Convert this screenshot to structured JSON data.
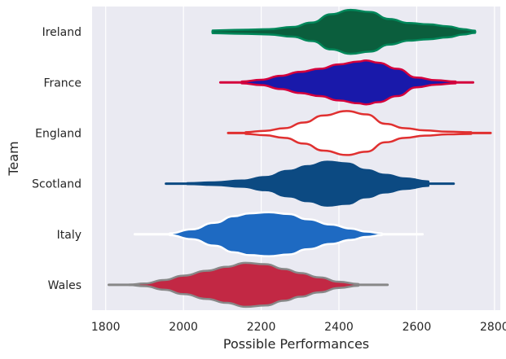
{
  "chart_data": {
    "type": "violin",
    "title": "",
    "xlabel": "Possible Performances",
    "ylabel": "Team",
    "xlim": [
      1765,
      2815
    ],
    "xticks": [
      1800,
      2000,
      2200,
      2400,
      2600,
      2800
    ],
    "grid": true,
    "orientation": "horizontal",
    "background": "#eaeaf2",
    "series": [
      {
        "name": "Ireland",
        "fill": "#0b5e3d",
        "edge": "#00875a",
        "min": 2075,
        "max": 2750,
        "profile": [
          [
            2075,
            0.06
          ],
          [
            2150,
            0.09
          ],
          [
            2220,
            0.12
          ],
          [
            2280,
            0.22
          ],
          [
            2330,
            0.42
          ],
          [
            2380,
            0.8
          ],
          [
            2430,
            1.0
          ],
          [
            2480,
            0.9
          ],
          [
            2530,
            0.58
          ],
          [
            2580,
            0.4
          ],
          [
            2630,
            0.34
          ],
          [
            2680,
            0.25
          ],
          [
            2720,
            0.12
          ],
          [
            2750,
            0.05
          ]
        ]
      },
      {
        "name": "France",
        "fill": "#1919aa",
        "edge": "#d4003c",
        "min": 2095,
        "max": 2745,
        "profile": [
          [
            2095,
            0.0
          ],
          [
            2150,
            0.04
          ],
          [
            2200,
            0.12
          ],
          [
            2250,
            0.3
          ],
          [
            2300,
            0.48
          ],
          [
            2350,
            0.62
          ],
          [
            2400,
            0.82
          ],
          [
            2450,
            0.95
          ],
          [
            2470,
            1.0
          ],
          [
            2500,
            0.9
          ],
          [
            2550,
            0.62
          ],
          [
            2600,
            0.22
          ],
          [
            2650,
            0.1
          ],
          [
            2700,
            0.04
          ],
          [
            2745,
            0.0
          ]
        ]
      },
      {
        "name": "England",
        "fill": "#ffffff",
        "edge": "#e03030",
        "min": 2115,
        "max": 2790,
        "profile": [
          [
            2115,
            0.0
          ],
          [
            2160,
            0.04
          ],
          [
            2210,
            0.1
          ],
          [
            2260,
            0.22
          ],
          [
            2310,
            0.48
          ],
          [
            2360,
            0.8
          ],
          [
            2420,
            1.0
          ],
          [
            2470,
            0.85
          ],
          [
            2520,
            0.42
          ],
          [
            2570,
            0.22
          ],
          [
            2620,
            0.12
          ],
          [
            2680,
            0.06
          ],
          [
            2740,
            0.04
          ],
          [
            2790,
            0.0
          ]
        ]
      },
      {
        "name": "Scotland",
        "fill": "#0c4a82",
        "edge": "#0c4a82",
        "min": 1955,
        "max": 2695,
        "profile": [
          [
            1955,
            0.0
          ],
          [
            2010,
            0.02
          ],
          [
            2080,
            0.06
          ],
          [
            2150,
            0.14
          ],
          [
            2210,
            0.3
          ],
          [
            2270,
            0.58
          ],
          [
            2320,
            0.8
          ],
          [
            2370,
            1.0
          ],
          [
            2420,
            0.92
          ],
          [
            2470,
            0.62
          ],
          [
            2520,
            0.4
          ],
          [
            2570,
            0.24
          ],
          [
            2630,
            0.1
          ],
          [
            2695,
            0.0
          ]
        ]
      },
      {
        "name": "Italy",
        "fill": "#1e6ac2",
        "edge": "#ffffff",
        "min": 1875,
        "max": 2615,
        "profile": [
          [
            1875,
            0.0
          ],
          [
            1920,
            0.0
          ],
          [
            1965,
            0.04
          ],
          [
            2020,
            0.22
          ],
          [
            2080,
            0.52
          ],
          [
            2130,
            0.82
          ],
          [
            2170,
            0.95
          ],
          [
            2220,
            1.0
          ],
          [
            2270,
            0.92
          ],
          [
            2320,
            0.68
          ],
          [
            2380,
            0.44
          ],
          [
            2430,
            0.26
          ],
          [
            2470,
            0.12
          ],
          [
            2510,
            0.04
          ],
          [
            2560,
            0.0
          ],
          [
            2615,
            0.0
          ]
        ]
      },
      {
        "name": "Wales",
        "fill": "#c22844",
        "edge": "#888888",
        "min": 1808,
        "max": 2525,
        "profile": [
          [
            1808,
            0.0
          ],
          [
            1860,
            0.01
          ],
          [
            1900,
            0.06
          ],
          [
            1950,
            0.22
          ],
          [
            2000,
            0.42
          ],
          [
            2060,
            0.64
          ],
          [
            2110,
            0.82
          ],
          [
            2160,
            1.0
          ],
          [
            2210,
            0.94
          ],
          [
            2260,
            0.72
          ],
          [
            2300,
            0.54
          ],
          [
            2350,
            0.34
          ],
          [
            2400,
            0.14
          ],
          [
            2450,
            0.04
          ],
          [
            2525,
            0.0
          ]
        ]
      }
    ]
  }
}
